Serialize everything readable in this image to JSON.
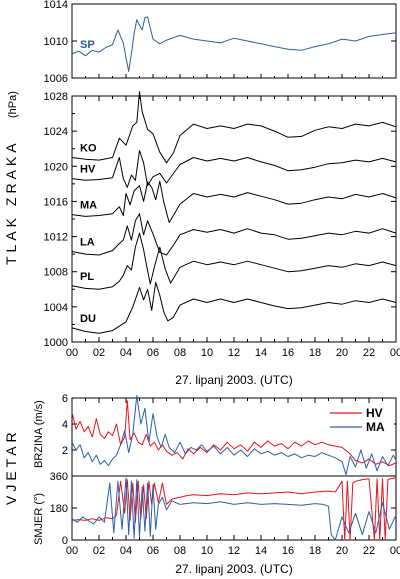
{
  "chart_data": [
    {
      "type": "line",
      "panel": "pressure-top",
      "ylim": [
        1006,
        1014
      ],
      "yticks": [
        "1006",
        "1010",
        "1014"
      ],
      "series": [
        {
          "name": "SP",
          "color": "#2f5f9e",
          "x": [
            0,
            0.5,
            1,
            1.5,
            2,
            2.5,
            3,
            3.2,
            3.4,
            3.6,
            3.8,
            4.0,
            4.2,
            4.4,
            4.6,
            4.8,
            5.0,
            5.2,
            5.4,
            5.6,
            6,
            6.5,
            7,
            8,
            9,
            10,
            11,
            12,
            13,
            14,
            15,
            16,
            17,
            18,
            19,
            20,
            21,
            22,
            23,
            24
          ],
          "y": [
            1008.6,
            1008.9,
            1008.4,
            1009.0,
            1008.8,
            1009.3,
            1009.6,
            1010.4,
            1011.2,
            1010.5,
            1009.8,
            1008.2,
            1006.7,
            1008.6,
            1010.8,
            1012.3,
            1011.7,
            1011.2,
            1012.5,
            1012.6,
            1010.2,
            1009.7,
            1010.1,
            1010.6,
            1010.2,
            1010.0,
            1009.8,
            1010.3,
            1010.0,
            1009.7,
            1009.4,
            1009.1,
            1009.0,
            1009.4,
            1009.7,
            1010.2,
            1010.0,
            1010.5,
            1010.7,
            1010.9
          ]
        }
      ]
    },
    {
      "type": "line",
      "panel": "pressure-main",
      "ylim": [
        1000,
        1028
      ],
      "yticks": [
        "1000",
        "1004",
        "1008",
        "1012",
        "1016",
        "1020",
        "1024",
        "1028"
      ],
      "series": [
        {
          "name": "KO",
          "color": "#000000",
          "x": [
            0,
            1,
            2,
            3,
            3.5,
            4,
            4.5,
            4.8,
            5.0,
            5.2,
            5.6,
            6,
            6.5,
            7,
            7.5,
            8,
            9,
            10,
            11,
            12,
            13,
            14,
            15,
            16,
            17,
            18,
            19,
            20,
            21,
            22,
            23,
            24
          ],
          "y": [
            1021.0,
            1020.8,
            1020.7,
            1021.0,
            1023.2,
            1022.4,
            1024.6,
            1025.0,
            1028.5,
            1026.2,
            1024.2,
            1023.7,
            1021.6,
            1020.4,
            1021.5,
            1023.5,
            1024.8,
            1024.3,
            1024.6,
            1024.3,
            1024.8,
            1024.6,
            1024.0,
            1023.3,
            1023.4,
            1024.1,
            1024.5,
            1024.3,
            1024.8,
            1024.6,
            1025.0,
            1024.5
          ]
        },
        {
          "name": "HV",
          "color": "#000000",
          "x": [
            0,
            1,
            2,
            3,
            3.5,
            3.8,
            4.1,
            4.4,
            4.7,
            5.0,
            5.3,
            5.6,
            6,
            6.5,
            7,
            8,
            9,
            10,
            11,
            12,
            13,
            14,
            15,
            16,
            17,
            18,
            19,
            20,
            21,
            22,
            23,
            24
          ],
          "y": [
            1018.6,
            1018.4,
            1018.5,
            1018.7,
            1021.0,
            1018.6,
            1017.6,
            1019.0,
            1018.4,
            1021.8,
            1020.4,
            1017.8,
            1018.8,
            1019.2,
            1018.1,
            1020.2,
            1021.0,
            1020.6,
            1020.9,
            1020.6,
            1021.0,
            1020.5,
            1020.1,
            1019.5,
            1019.6,
            1019.9,
            1020.3,
            1020.4,
            1020.7,
            1020.5,
            1020.9,
            1020.5
          ]
        },
        {
          "name": "MA",
          "color": "#000000",
          "x": [
            0,
            1,
            2,
            3,
            3.5,
            3.8,
            4.0,
            4.3,
            4.6,
            5.0,
            5.3,
            5.6,
            5.9,
            6.2,
            6.5,
            6.8,
            7.2,
            8,
            9,
            10,
            11,
            12,
            13,
            14,
            15,
            16,
            17,
            18,
            19,
            20,
            21,
            22,
            23,
            24
          ],
          "y": [
            1014.5,
            1014.3,
            1014.4,
            1014.6,
            1015.4,
            1014.4,
            1016.9,
            1015.6,
            1017.2,
            1017.8,
            1016.0,
            1018.2,
            1017.6,
            1016.2,
            1018.3,
            1015.9,
            1013.6,
            1015.7,
            1016.9,
            1016.5,
            1016.8,
            1016.5,
            1017.0,
            1016.6,
            1016.2,
            1015.7,
            1015.8,
            1016.2,
            1016.5,
            1016.3,
            1016.8,
            1016.5,
            1016.9,
            1016.4
          ]
        },
        {
          "name": "LA",
          "color": "#000000",
          "x": [
            0,
            1,
            2,
            3,
            3.5,
            3.8,
            4.1,
            4.4,
            4.7,
            5.0,
            5.3,
            5.6,
            6,
            6.5,
            7,
            7.5,
            8,
            9,
            10,
            11,
            12,
            13,
            14,
            15,
            16,
            17,
            18,
            19,
            20,
            21,
            22,
            23,
            24
          ],
          "y": [
            1010.3,
            1010.0,
            1009.9,
            1010.4,
            1011.2,
            1011.6,
            1013.2,
            1011.6,
            1013.8,
            1014.6,
            1012.2,
            1013.8,
            1012.3,
            1010.2,
            1009.9,
            1011.0,
            1012.2,
            1012.8,
            1012.5,
            1012.8,
            1012.4,
            1012.9,
            1012.4,
            1012.2,
            1011.7,
            1011.8,
            1012.1,
            1012.4,
            1012.2,
            1012.6,
            1012.4,
            1012.9,
            1012.4
          ]
        },
        {
          "name": "PL",
          "color": "#000000",
          "x": [
            0,
            1,
            2,
            3,
            3.5,
            3.8,
            4.1,
            4.4,
            4.7,
            5.0,
            5.3,
            5.6,
            5.8,
            6.1,
            6.5,
            6.9,
            7.3,
            8,
            9,
            10,
            11,
            12,
            13,
            14,
            15,
            16,
            17,
            18,
            19,
            20,
            21,
            22,
            23,
            24
          ],
          "y": [
            1006.4,
            1006.1,
            1006.0,
            1006.3,
            1006.9,
            1007.6,
            1008.7,
            1008.2,
            1010.8,
            1012.4,
            1010.5,
            1008.1,
            1006.6,
            1008.5,
            1010.8,
            1008.3,
            1006.7,
            1008.5,
            1009.2,
            1008.8,
            1009.1,
            1008.8,
            1009.2,
            1008.8,
            1008.4,
            1008.0,
            1008.1,
            1008.4,
            1008.7,
            1008.5,
            1008.9,
            1008.7,
            1009.1,
            1008.7
          ]
        },
        {
          "name": "DU",
          "color": "#000000",
          "x": [
            0,
            1,
            2,
            3,
            3.5,
            4.0,
            4.5,
            5.0,
            5.3,
            5.6,
            5.9,
            6.2,
            6.5,
            6.8,
            7.1,
            7.5,
            8,
            9,
            10,
            11,
            12,
            13,
            14,
            15,
            16,
            17,
            18,
            19,
            20,
            21,
            22,
            23,
            24
          ],
          "y": [
            1001.6,
            1001.2,
            1001.0,
            1001.3,
            1001.8,
            1002.3,
            1004.0,
            1006.2,
            1004.8,
            1006.0,
            1003.6,
            1006.8,
            1005.3,
            1003.4,
            1002.4,
            1002.8,
            1004.2,
            1004.9,
            1004.5,
            1004.9,
            1004.5,
            1004.9,
            1004.5,
            1004.1,
            1003.8,
            1003.9,
            1004.2,
            1004.5,
            1004.3,
            1004.7,
            1004.5,
            1004.9,
            1004.5
          ]
        }
      ]
    },
    {
      "type": "line",
      "panel": "wind-speed",
      "ylim": [
        0,
        6
      ],
      "yticks": [
        "2",
        "4",
        "6"
      ],
      "series": [
        {
          "name": "HV",
          "color": "#e8141b",
          "x": [
            0,
            0.3,
            0.6,
            0.9,
            1.2,
            1.5,
            1.8,
            2.1,
            2.4,
            2.7,
            3.0,
            3.3,
            3.6,
            3.9,
            4.1,
            4.3,
            4.6,
            4.9,
            5.2,
            5.5,
            5.8,
            6.1,
            6.4,
            6.7,
            7.0,
            7.4,
            7.8,
            8.2,
            8.6,
            9,
            9.5,
            10,
            10.5,
            11,
            11.5,
            12,
            12.5,
            13,
            13.5,
            14,
            14.5,
            15,
            15.5,
            16,
            16.5,
            17,
            17.5,
            18,
            18.5,
            19,
            19.5,
            20,
            20.5,
            21,
            21.5,
            22,
            22.5,
            23,
            23.5,
            24
          ],
          "y": [
            4.9,
            3.6,
            4.2,
            3.4,
            3.8,
            3.0,
            4.4,
            3.2,
            2.9,
            3.4,
            3.1,
            4.0,
            2.4,
            3.0,
            5.8,
            2.8,
            3.3,
            2.6,
            2.4,
            3.2,
            2.3,
            2.6,
            2.0,
            2.4,
            1.9,
            1.6,
            1.8,
            1.3,
            2.1,
            1.7,
            2.2,
            1.8,
            2.4,
            2.0,
            2.6,
            2.1,
            2.4,
            1.9,
            2.6,
            2.2,
            2.7,
            2.3,
            2.5,
            2.1,
            2.6,
            2.3,
            2.7,
            2.4,
            2.6,
            2.4,
            2.3,
            2.2,
            1.8,
            1.2,
            1.0,
            1.3,
            0.9,
            1.1,
            0.8,
            1.0
          ]
        },
        {
          "name": "MA",
          "color": "#2d5ea8",
          "x": [
            0,
            0.3,
            0.6,
            0.9,
            1.2,
            1.5,
            1.8,
            2.1,
            2.4,
            2.7,
            3.0,
            3.3,
            3.6,
            3.9,
            4.2,
            4.5,
            4.8,
            5.1,
            5.4,
            5.7,
            6.0,
            6.3,
            6.6,
            6.9,
            7.2,
            7.6,
            8.0,
            8.4,
            8.8,
            9.2,
            9.6,
            10,
            10.5,
            11,
            11.5,
            12,
            12.5,
            13,
            13.5,
            14,
            14.5,
            15,
            15.5,
            16,
            16.5,
            17,
            17.5,
            18,
            18.5,
            19,
            19.5,
            20,
            20.3,
            20.6,
            21,
            21.4,
            21.8,
            22.2,
            22.6,
            23,
            23.4,
            23.8,
            24
          ],
          "y": [
            2.6,
            2.0,
            2.4,
            1.4,
            1.8,
            1.1,
            1.6,
            0.9,
            1.2,
            0.8,
            1.3,
            1.6,
            2.4,
            3.5,
            1.8,
            3.2,
            6.2,
            4.0,
            5.2,
            2.6,
            4.8,
            3.0,
            2.2,
            3.2,
            2.2,
            1.8,
            2.6,
            1.7,
            2.2,
            2.0,
            2.4,
            1.9,
            2.3,
            1.7,
            2.2,
            1.6,
            2.0,
            1.5,
            2.1,
            1.7,
            1.9,
            1.6,
            1.8,
            1.5,
            1.7,
            1.4,
            1.6,
            1.5,
            1.8,
            1.6,
            1.4,
            1.1,
            0.1,
            1.5,
            0.7,
            2.0,
            0.6,
            1.7,
            0.4,
            1.5,
            0.8,
            1.6,
            1.2
          ]
        }
      ]
    },
    {
      "type": "line",
      "panel": "wind-direction",
      "ylim": [
        0,
        360
      ],
      "yticks": [
        "0",
        "180",
        "360"
      ],
      "series": [
        {
          "name": "HV",
          "color": "#e8141b",
          "x": [
            0,
            0.5,
            1,
            1.5,
            2,
            2.5,
            3,
            3.3,
            3.6,
            3.9,
            4.1,
            4.3,
            4.5,
            4.7,
            4.9,
            5.1,
            5.3,
            5.5,
            5.7,
            5.9,
            6.1,
            6.4,
            6.7,
            7.0,
            7.4,
            8,
            8.5,
            9,
            10,
            11,
            12,
            13,
            14,
            15,
            16,
            17,
            18,
            19,
            19.5,
            20,
            20.2,
            20.4,
            20.6,
            20.8,
            21,
            21.5,
            22,
            22.4,
            22.6,
            22.8,
            23.0,
            23.2,
            23.4,
            23.6,
            24
          ],
          "y": [
            110,
            115,
            110,
            120,
            110,
            125,
            120,
            140,
            330,
            150,
            340,
            110,
            320,
            100,
            330,
            120,
            310,
            120,
            330,
            200,
            320,
            210,
            320,
            200,
            230,
            240,
            250,
            255,
            250,
            260,
            255,
            265,
            260,
            265,
            270,
            260,
            270,
            275,
            270,
            330,
            0,
            330,
            0,
            320,
            330,
            340,
            345,
            0,
            345,
            0,
            345,
            0,
            340,
            345,
            350
          ]
        },
        {
          "name": "MA",
          "color": "#2d5ea8",
          "x": [
            0,
            0.4,
            0.8,
            1.2,
            1.6,
            2.0,
            2.4,
            2.8,
            3.1,
            3.4,
            3.7,
            4.0,
            4.2,
            4.4,
            4.6,
            4.8,
            5.0,
            5.2,
            5.4,
            5.6,
            5.8,
            6.0,
            6.2,
            6.4,
            6.7,
            7.0,
            7.4,
            8,
            9,
            10,
            11,
            12,
            13,
            14,
            15,
            16,
            17,
            18,
            18.6,
            19.0,
            19.2,
            19.5,
            20,
            20.5,
            21,
            21.5,
            22,
            22.5,
            23,
            23.5,
            24
          ],
          "y": [
            120,
            100,
            130,
            110,
            90,
            130,
            100,
            320,
            40,
            330,
            60,
            350,
            30,
            330,
            10,
            340,
            20,
            300,
            50,
            320,
            20,
            310,
            60,
            200,
            240,
            170,
            220,
            200,
            210,
            205,
            215,
            200,
            210,
            200,
            205,
            200,
            195,
            205,
            200,
            190,
            30,
            0,
            130,
            40,
            150,
            30,
            160,
            40,
            210,
            60,
            140
          ]
        }
      ]
    }
  ],
  "labels": {
    "pressure_title": "TLAK ZRAKA",
    "pressure_unit": "(hPa)",
    "wind_title": "VJETAR",
    "wind_speed_label": "BRZINA (m/s)",
    "wind_dir_label": "SMJER (°)",
    "xlabel_top": "27. lipanj 2003. (UTC)",
    "xlabel_bottom": "27. lipanj 2003. (UTC)"
  },
  "xticks": [
    "00",
    "02",
    "04",
    "06",
    "08",
    "10",
    "12",
    "14",
    "16",
    "18",
    "20",
    "22",
    "00"
  ],
  "legend": {
    "position": "top-right",
    "entries": [
      "HV",
      "MA"
    ]
  }
}
